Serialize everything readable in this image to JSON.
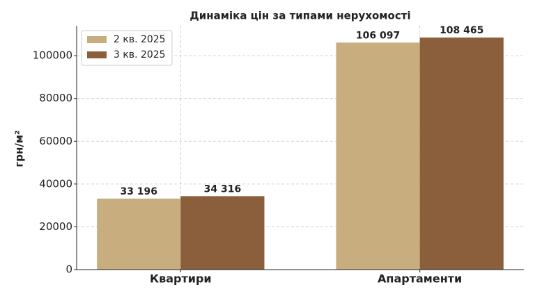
{
  "chart_data": {
    "type": "bar",
    "title": "Динаміка цін за типами нерухомості",
    "y_label": "грн/м²",
    "categories": [
      "Квартири",
      "Апартаменти"
    ],
    "series": [
      {
        "name": "2 кв. 2025",
        "color": "#c8ad7f",
        "values": [
          33196,
          106097
        ],
        "value_labels": [
          "33 196",
          "106 097"
        ]
      },
      {
        "name": "3 кв. 2025",
        "color": "#8b5e3c",
        "values": [
          34316,
          108465
        ],
        "value_labels": [
          "34 316",
          "108 465"
        ]
      }
    ],
    "ylim": [
      0,
      114000
    ],
    "yticks": [
      0,
      20000,
      40000,
      60000,
      80000,
      100000
    ],
    "grid": true,
    "legend": "upper left"
  }
}
